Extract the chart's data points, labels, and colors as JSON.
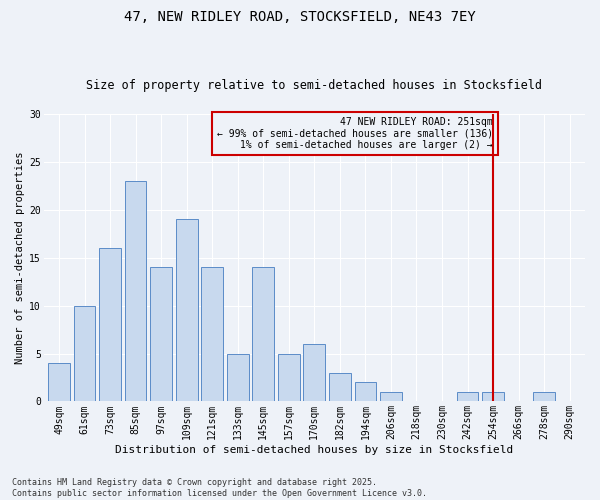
{
  "title": "47, NEW RIDLEY ROAD, STOCKSFIELD, NE43 7EY",
  "subtitle": "Size of property relative to semi-detached houses in Stocksfield",
  "xlabel": "Distribution of semi-detached houses by size in Stocksfield",
  "ylabel": "Number of semi-detached properties",
  "bar_labels": [
    "49sqm",
    "61sqm",
    "73sqm",
    "85sqm",
    "97sqm",
    "109sqm",
    "121sqm",
    "133sqm",
    "145sqm",
    "157sqm",
    "170sqm",
    "182sqm",
    "194sqm",
    "206sqm",
    "218sqm",
    "230sqm",
    "242sqm",
    "254sqm",
    "266sqm",
    "278sqm",
    "290sqm"
  ],
  "bar_values": [
    4,
    10,
    16,
    23,
    14,
    19,
    14,
    5,
    14,
    5,
    6,
    3,
    2,
    1,
    0,
    0,
    1,
    1,
    0,
    1,
    0
  ],
  "bar_color": "#c8d9ee",
  "bar_edgecolor": "#5b8cc8",
  "vline_x_index": 17,
  "vline_color": "#cc0000",
  "annotation_line1": "47 NEW RIDLEY ROAD: 251sqm",
  "annotation_line2": "← 99% of semi-detached houses are smaller (136)",
  "annotation_line3": "1% of semi-detached houses are larger (2) →",
  "ylim": [
    0,
    30
  ],
  "yticks": [
    0,
    5,
    10,
    15,
    20,
    25,
    30
  ],
  "footnote": "Contains HM Land Registry data © Crown copyright and database right 2025.\nContains public sector information licensed under the Open Government Licence v3.0.",
  "bg_color": "#eef2f8",
  "title_fontsize": 10,
  "subtitle_fontsize": 8.5,
  "xlabel_fontsize": 8,
  "ylabel_fontsize": 7.5,
  "tick_fontsize": 7,
  "annot_fontsize": 7,
  "footnote_fontsize": 6
}
